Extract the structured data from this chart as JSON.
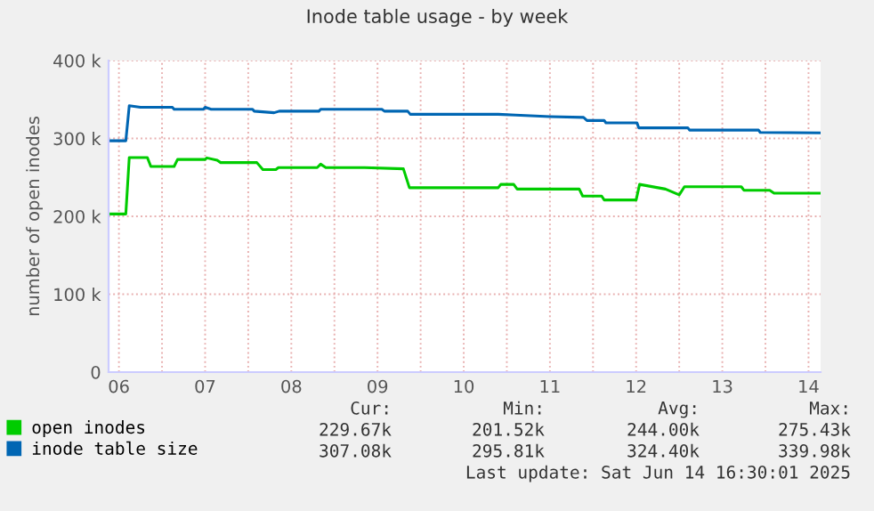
{
  "chart_data": {
    "type": "line",
    "title": "Inode table usage - by week",
    "ylabel": "number of open inodes",
    "series": [
      {
        "name": "open inodes",
        "color": "#00cc00",
        "x": [
          6.38,
          6.58,
          6.62,
          6.83,
          6.87,
          7.14,
          7.18,
          7.5,
          7.52,
          7.64,
          7.68,
          8.1,
          8.17,
          8.32,
          8.35,
          8.8,
          8.84,
          8.9,
          9.35,
          9.8,
          9.87,
          10.9,
          10.93,
          11.08,
          11.12,
          11.84,
          11.88,
          12.1,
          12.13,
          12.5,
          12.54,
          12.84,
          13.0,
          13.06,
          13.72,
          13.75,
          14.05,
          14.1,
          14.63
        ],
        "values": [
          203000,
          203000,
          275500,
          275500,
          264000,
          264000,
          273000,
          273000,
          275000,
          272000,
          269000,
          269000,
          260000,
          260000,
          262600,
          262600,
          267000,
          262600,
          262600,
          261000,
          236700,
          236700,
          241000,
          241000,
          235000,
          235000,
          226000,
          226000,
          221000,
          221000,
          241000,
          235000,
          227500,
          238000,
          238000,
          233500,
          233500,
          229800,
          229700
        ]
      },
      {
        "name": "inode table size",
        "color": "#0066b3",
        "x": [
          6.38,
          6.58,
          6.62,
          6.75,
          7.12,
          7.14,
          7.48,
          7.5,
          7.57,
          8.05,
          8.07,
          8.3,
          8.36,
          8.82,
          8.84,
          9.55,
          9.58,
          9.85,
          9.88,
          10.9,
          11.1,
          11.5,
          11.89,
          11.93,
          12.13,
          12.15,
          12.51,
          12.53,
          13.1,
          13.12,
          13.92,
          13.94,
          14.63
        ],
        "values": [
          297000,
          297000,
          342000,
          340000,
          340000,
          337500,
          337500,
          340000,
          337500,
          337500,
          335000,
          333000,
          335000,
          335000,
          337500,
          337500,
          335000,
          335000,
          331000,
          331000,
          330000,
          328000,
          327000,
          323000,
          323000,
          320000,
          320000,
          313600,
          313600,
          310700,
          310700,
          307700,
          307100
        ]
      }
    ],
    "xlim": [
      6.38,
      14.64
    ],
    "xticks": [
      {
        "value": 6.5,
        "label": "06"
      },
      {
        "value": 7.5,
        "label": "07"
      },
      {
        "value": 8.5,
        "label": "08"
      },
      {
        "value": 9.5,
        "label": "09"
      },
      {
        "value": 10.5,
        "label": "10"
      },
      {
        "value": 11.5,
        "label": "11"
      },
      {
        "value": 12.5,
        "label": "12"
      },
      {
        "value": 13.5,
        "label": "13"
      },
      {
        "value": 14.5,
        "label": "14"
      },
      {
        "value": 7,
        "label": null
      },
      {
        "value": 8,
        "label": null
      },
      {
        "value": 9,
        "label": null
      },
      {
        "value": 10,
        "label": null
      },
      {
        "value": 11,
        "label": null
      },
      {
        "value": 12,
        "label": null
      },
      {
        "value": 13,
        "label": null
      },
      {
        "value": 14,
        "label": null
      }
    ],
    "ylim": [
      0,
      400000
    ],
    "yticks": [
      0,
      {
        "value": 100000,
        "label": "100 k"
      },
      {
        "value": 200000,
        "label": "200 k"
      },
      {
        "value": 300000,
        "label": "300 k"
      },
      {
        "value": 400000,
        "label": "400 k"
      }
    ],
    "grid": true,
    "legend": "bottom",
    "annotations": [
      "Cur:",
      "Min:",
      "Avg:",
      "Max:",
      "229.67k",
      "201.52k",
      "244.00k",
      "275.43k",
      "307.08k",
      "295.81k",
      "324.40k",
      "339.98k",
      "Last update: Sat Jun 14 16:30:01 2025"
    ]
  }
}
